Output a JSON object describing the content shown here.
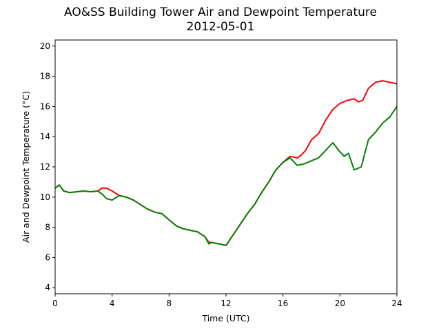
{
  "chart_data": {
    "type": "line",
    "title": "AO&SS Building Tower Air and Dewpoint Temperature",
    "subtitle": "2012-05-01",
    "xlabel": "Time (UTC)",
    "ylabel": "Air and Dewpoint Temperature (°C)",
    "xlim": [
      0,
      24
    ],
    "ylim": [
      3.6,
      20.4
    ],
    "xticks": [
      0,
      4,
      8,
      12,
      16,
      20,
      24
    ],
    "yticks": [
      4,
      6,
      8,
      10,
      12,
      14,
      16,
      18,
      20
    ],
    "grid": false,
    "series": [
      {
        "color": "#ff0000",
        "x": [
          0,
          0.3,
          0.6,
          1,
          1.5,
          2,
          2.5,
          3,
          3.3,
          3.6,
          4,
          4.5,
          5,
          5.5,
          6,
          6.5,
          7,
          7.5,
          8,
          8.5,
          9,
          9.5,
          10,
          10.5,
          10.8,
          11,
          11.5,
          12,
          12.5,
          13,
          13.5,
          14,
          14.5,
          15,
          15.5,
          16,
          16.5,
          17,
          17.3,
          17.6,
          18,
          18.5,
          19,
          19.5,
          20,
          20.5,
          21,
          21.3,
          21.6,
          22,
          22.5,
          23,
          23.5,
          24
        ],
        "y": [
          10.6,
          10.8,
          10.4,
          10.3,
          10.35,
          10.4,
          10.35,
          10.4,
          10.6,
          10.6,
          10.4,
          10.1,
          10.0,
          9.8,
          9.5,
          9.2,
          9.0,
          8.9,
          8.5,
          8.1,
          7.9,
          7.8,
          7.7,
          7.4,
          7.0,
          7.0,
          6.9,
          6.8,
          7.5,
          8.2,
          8.9,
          9.5,
          10.3,
          11.0,
          11.8,
          12.3,
          12.7,
          12.6,
          12.8,
          13.1,
          13.8,
          14.2,
          15.1,
          15.8,
          16.2,
          16.4,
          16.5,
          16.3,
          16.4,
          17.2,
          17.6,
          17.7,
          17.6,
          17.5
        ]
      },
      {
        "color": "#008000",
        "x": [
          0,
          0.3,
          0.6,
          1,
          1.5,
          2,
          2.5,
          3,
          3.3,
          3.6,
          4,
          4.5,
          5,
          5.5,
          6,
          6.5,
          7,
          7.5,
          8,
          8.5,
          9,
          9.5,
          10,
          10.5,
          10.8,
          11,
          11.5,
          12,
          12.5,
          13,
          13.5,
          14,
          14.5,
          15,
          15.5,
          16,
          16.5,
          17,
          17.5,
          18,
          18.5,
          19,
          19.5,
          20,
          20.3,
          20.6,
          21,
          21.5,
          22,
          22.5,
          23,
          23.5,
          24
        ],
        "y": [
          10.6,
          10.8,
          10.4,
          10.3,
          10.35,
          10.4,
          10.35,
          10.4,
          10.2,
          9.9,
          9.8,
          10.1,
          10.0,
          9.8,
          9.5,
          9.2,
          9.0,
          8.9,
          8.5,
          8.1,
          7.9,
          7.8,
          7.7,
          7.4,
          6.9,
          7.0,
          6.9,
          6.8,
          7.5,
          8.2,
          8.9,
          9.5,
          10.3,
          11.0,
          11.8,
          12.3,
          12.6,
          12.1,
          12.2,
          12.4,
          12.6,
          13.1,
          13.6,
          13.0,
          12.7,
          12.9,
          11.8,
          12.0,
          13.8,
          14.3,
          14.9,
          15.3,
          16.0
        ]
      }
    ]
  }
}
